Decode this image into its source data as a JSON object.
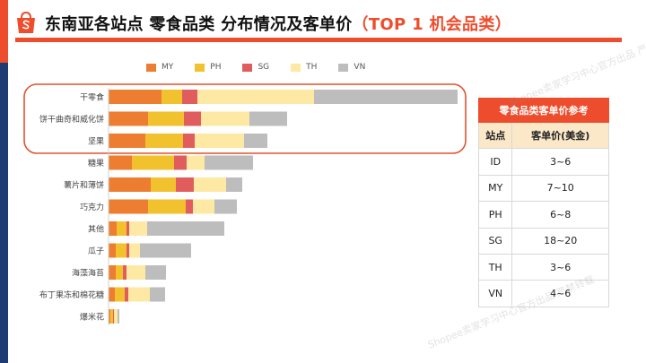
{
  "title": {
    "main": "东南亚各站点 零食品类 分布情况及客单价",
    "highlight": "（TOP 1 机会品类）"
  },
  "watermarks": [
    "Shopee卖家学习中心官方出品 严禁转载",
    "Shopee卖家学习中心官方出品 严禁转载"
  ],
  "colors": {
    "brand": "#ee4d2d",
    "navy": "#1f3b73",
    "highlight_box": "#e0542f"
  },
  "chart_data": {
    "type": "bar",
    "orientation": "horizontal",
    "stacked": true,
    "legend_position": "top",
    "title": "",
    "xlabel": "",
    "ylabel": "",
    "grid": false,
    "categories": [
      "干零食",
      "饼干曲奇和威化饼",
      "坚果",
      "糖果",
      "薯片和薄饼",
      "巧克力",
      "其他",
      "瓜子",
      "海藻海苔",
      "布丁果冻和棉花糖",
      "爆米花"
    ],
    "highlighted_categories": [
      "干零食",
      "饼干曲奇和威化饼",
      "坚果"
    ],
    "series": [
      {
        "name": "MY",
        "color": "#ed7d31",
        "values": [
          59,
          44,
          41,
          26,
          47,
          44,
          9,
          8,
          8,
          7,
          2
        ]
      },
      {
        "name": "PH",
        "color": "#f2c12e",
        "values": [
          23,
          40,
          42,
          47,
          28,
          42,
          11,
          12,
          8,
          11,
          3
        ]
      },
      {
        "name": "SG",
        "color": "#e15d5d",
        "values": [
          17,
          19,
          13,
          14,
          20,
          8,
          3,
          3,
          4,
          4,
          1
        ]
      },
      {
        "name": "TH",
        "color": "#fde9a4",
        "values": [
          130,
          54,
          55,
          20,
          36,
          24,
          20,
          12,
          21,
          24,
          4
        ]
      },
      {
        "name": "VN",
        "color": "#bdbdbd",
        "values": [
          160,
          42,
          26,
          54,
          18,
          25,
          86,
          57,
          23,
          17,
          2
        ]
      }
    ]
  },
  "ref_table": {
    "title": "零食品类客单价参考",
    "header": [
      "站点",
      "客单价(美金)"
    ],
    "rows": [
      [
        "ID",
        "3~6"
      ],
      [
        "MY",
        "7~10"
      ],
      [
        "PH",
        "6~8"
      ],
      [
        "SG",
        "18~20"
      ],
      [
        "TH",
        "3~6"
      ],
      [
        "VN",
        "4~6"
      ]
    ]
  }
}
